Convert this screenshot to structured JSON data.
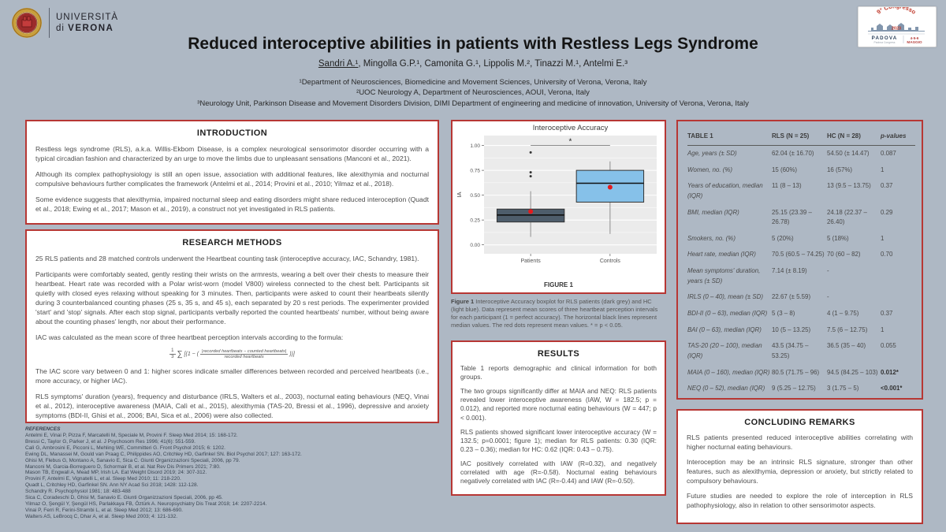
{
  "poster": {
    "title": "Reduced interoceptive abilities in patients with Restless Legs Syndrome",
    "authors_first": "Sandri A.¹",
    "authors_rest": ", Mingolla G.P.¹, Camonita G.¹, Lippolis M.², Tinazzi M.¹, Antelmi E.³",
    "affiliations": [
      "¹Department of Neurosciences, Biomedicine and Movement Sciences, University of Verona, Verona, Italy",
      "²UOC Neurology A, Department of Neurosciences, AOUI, Verona, Italy",
      "³Neurology Unit, Parkinson Disease and Movement Disorders Division, DIMI Department of engineering and medicine of innovation, University of Verona, Verona, Italy"
    ]
  },
  "logos": {
    "university_line1": "UNIVERSITÀ",
    "university_line2_prefix": "di ",
    "university_line2_bold": "VERONA",
    "congress_title": "9° Congresso",
    "congress_year": "2023",
    "congress_city": "PADOVA",
    "congress_sub": "Padova Congress",
    "congress_dates": "4-5-6",
    "congress_month": "MAGGIO"
  },
  "introduction": {
    "heading": "INTRODUCTION",
    "paragraphs": [
      "Restless legs syndrome (RLS), a.k.a. Willis-Ekbom Disease, is a complex neurological sensorimotor disorder occurring with a typical circadian fashion and characterized by an urge to move the limbs due to unpleasant sensations (Manconi et al., 2021).",
      "Although its complex pathophysiology is still an open issue, association with additional features, like alexithymia and nocturnal compulsive behaviours further complicates the framework (Antelmi et al., 2014; Provini et al., 2010; Yilmaz et al., 2018).",
      "Some evidence suggests that alexithymia, impaired nocturnal sleep and eating disorders might share reduced interoception (Quadt et al., 2018; Ewing et al., 2017; Mason et al., 2019), a construct not yet investigated in RLS patients."
    ]
  },
  "methods": {
    "heading": "RESEARCH METHODS",
    "paragraphs_before": [
      "25 RLS patients and 28 matched controls underwent the Heartbeat counting task (interoceptive accuracy, IAC, Schandry, 1981).",
      "Participants were comfortably seated, gently resting their wrists on the armrests, wearing a belt over their chests to measure their heartbeat. Heart rate was recorded with a Polar wrist-worn (model V800) wireless connected to the chest belt. Participants sit quietly with closed eyes relaxing without speaking for 3 minutes. Then, participants were asked to count their heartbeats silently during 3 counterbalanced counting phases (25 s, 35 s, and 45 s), each separated by 20 s rest periods. The experimenter provided 'start' and 'stop' signals. After each stop signal, participants verbally reported the counted heartbeats' number, without being aware about the counting phases' length, nor about their performance.",
      "IAC was calculated as the mean score of three heartbeat perception intervals according to the formula:"
    ],
    "formula": {
      "coef_num": "1",
      "coef_den": "3",
      "sum": "∑",
      "open": "[(1 − (",
      "num": "|recorded heartbeats − counted heartbeats|",
      "den": "recorded heartbeats",
      "close": "))]"
    },
    "paragraphs_after": [
      "The IAC score vary between 0 and 1: higher scores indicate smaller differences between recorded and perceived heartbeats (i.e., more accuracy, or higher IAC).",
      "RLS symptoms' duration (years), frequency and disturbance (IRLS, Walters et al., 2003), nocturnal eating behaviours (NEQ, Vinai et al., 2012), interoceptive awareness (MAIA, Calì et al., 2015), alexithymia (TAS-20, Bressi et al., 1996), depressive and anxiety symptoms (BDI-II, Ghisi et al., 2006; BAI, Sica et al., 2006) were also collected."
    ]
  },
  "references": {
    "heading": "REFERENCES",
    "items": [
      "Antelmi E, Vinai P, Pizza F, Marcatelli M, Speciale M, Provini F. Sleep Med 2014; 15: 168-172.",
      "Bressi C, Taylor G, Parker J, et al. J Psychosom Res 1996; 41(6): 551-559.",
      "Calì G, Ambrosini E, Picconi L, Mehling WE, Committeri G. Front Psychol 2015; 6: 1202.",
      "Ewing DL, Manassei M, Gould van Praag C, Philippides AO, Critchley HD, Garfinkel SN. Biol Psychol 2017; 127: 163-172.",
      "Ghisi M, Flebus G, Montano A, Sanavio E, Sica C. Giunti Organizzazioni Speciali, 2006, pp 79.",
      "Manconi M, Garcia-Borreguero D, Schormair B, et al. Nat Rev Dis Primers 2021; 7:80.",
      "Mason TB, Engwall A, Mead MP, Irish LA. Eat Weight Disord 2019; 24: 307-312.",
      "Provini F, Antelmi E, Vignatelli L, et al. Sleep Med 2010; 11: 218-220.",
      "Quadt L, Critchley HD, Garfinkel SN. Ann NY Acad Sci 2018; 1428: 112-128.",
      "Schandry R. Psychophysiol 1981; 18: 483-488",
      "Sica C, Coradeschi D, Ghisi M, Sanavio E. Giunti Organizzazioni Speciali, 2006, pp 45.",
      "Yilmaz O, Şengül Y, Şengül HS, Parlakkaya FB, Öztürk A. Neuropsychiatry Dis Treat 2018; 14: 2207-2214.",
      "Vinai P, Ferri R, Ferini-Strambi L, et al. Sleep Med 2012; 13: 686-690.",
      "Walters AS, LeBrocq C, Dhar A, et al. Sleep Med 2003; 4: 121-132."
    ]
  },
  "figure": {
    "caption_label": "Figure 1",
    "caption_text": " Interoceptive Accuracy boxplot for RLS patients (dark grey) and HC (light blue). Data represent mean scores of three heartbeat perception intervals for each participant (1 = perfect accuracy). The horizontal black lines represent median values. The red dots represent mean values. * = p < 0.05."
  },
  "chart_data": {
    "type": "boxplot",
    "title": "Interoceptive Accuracy",
    "ylabel": "IA",
    "figure_label": "FIGURE 1",
    "categories": [
      "Patients",
      "Controls"
    ],
    "yticks": [
      0.0,
      0.25,
      0.5,
      0.75,
      1.0
    ],
    "ylim": [
      -0.09,
      1.1
    ],
    "series": [
      {
        "name": "Patients",
        "min": 0.08,
        "q1": 0.23,
        "median": 0.3,
        "q3": 0.36,
        "max": 0.54,
        "mean": 0.335,
        "outliers": [
          0.69,
          0.73,
          0.93
        ],
        "fill": "#4e5d6b"
      },
      {
        "name": "Controls",
        "min": 0.11,
        "q1": 0.43,
        "median": 0.62,
        "q3": 0.75,
        "max": 0.84,
        "mean": 0.58,
        "outliers": [],
        "fill": "#86c1e9"
      }
    ],
    "significance": {
      "y": 1.0,
      "label": "*"
    },
    "mean_color": "#e41a1c",
    "panel_bg": "#ebebeb",
    "grid": true,
    "legend": "none"
  },
  "results": {
    "heading": "RESULTS",
    "paragraphs": [
      "Table 1 reports demographic and clinical information for both groups.",
      "The two groups significantly differ at MAIA and NEQ: RLS patients revealed lower interoceptive awareness (IAW, W = 182.5; p = 0.012), and reported more nocturnal eating behaviours (W = 447; p < 0.001).",
      "RLS patients showed significant lower interoceptive accuracy (W = 132.5; p=0.0001; figure 1); median for RLS patients: 0.30 (IQR: 0.23 – 0.36); median for HC: 0.62 (IQR: 0.43 – 0.75).",
      "IAC positively correlated with IAW (R=0.32), and negatively correlated with age (R=-0.58). Nocturnal eating behaviours negatively correlated with IAC (R=-0.44) and IAW (R=-0.50)."
    ]
  },
  "table": {
    "col_label": "TABLE 1",
    "col_rls": "RLS (N = 25)",
    "col_hc": "HC (N = 28)",
    "col_p": "p-values",
    "rows": [
      {
        "label": "Age, years (± SD)",
        "rls": "62.04 (± 16.70)",
        "hc": "54.50 (± 14.47)",
        "p": "0.087",
        "p_bold": false
      },
      {
        "label": "Women, no. (%)",
        "rls": "15 (60%)",
        "hc": "16 (57%)",
        "p": "1",
        "p_bold": false
      },
      {
        "label": "Years of education, median (IQR)",
        "rls": "11 (8 – 13)",
        "hc": "13 (9.5 – 13.75)",
        "p": "0.37",
        "p_bold": false
      },
      {
        "label": "BMI, median (IQR)",
        "rls": "25.15 (23.39 – 26.78)",
        "hc": "24.18 (22.37 – 26.40)",
        "p": "0.29",
        "p_bold": false
      },
      {
        "label": "Smokers, no. (%)",
        "rls": "5 (20%)",
        "hc": "5 (18%)",
        "p": "1",
        "p_bold": false
      },
      {
        "label": "Heart rate, median (IQR)",
        "rls": "70.5 (60.5 – 74.25)",
        "hc": "70 (60 – 82)",
        "p": "0.70",
        "p_bold": false
      },
      {
        "label": "Mean symptoms' duration, years (± SD)",
        "rls": "7.14 (± 8.19)",
        "hc": "-",
        "p": "",
        "p_bold": false
      },
      {
        "label": "IRLS (0 – 40), mean (± SD)",
        "rls": "22.67 (± 5.59)",
        "hc": "-",
        "p": "",
        "p_bold": false
      },
      {
        "label": "BDI-II (0 – 63), median (IQR)",
        "rls": "5 (3 – 8)",
        "hc": "4 (1 – 9.75)",
        "p": "0.37",
        "p_bold": false
      },
      {
        "label": "BAI (0 – 63), median (IQR)",
        "rls": "10 (5 – 13.25)",
        "hc": "7.5 (6 – 12.75)",
        "p": "1",
        "p_bold": false
      },
      {
        "label": "TAS-20 (20 – 100), median (IQR)",
        "rls": "43.5 (34.75 – 53.25)",
        "hc": "36.5 (35 – 40)",
        "p": "0.055",
        "p_bold": false
      },
      {
        "label": "MAIA (0 – 160), median (IQR)",
        "rls": "80.5 (71.75 – 96)",
        "hc": "94.5 (84.25 – 103)",
        "p": "0.012*",
        "p_bold": true
      },
      {
        "label": "NEQ (0 – 52), median (IQR)",
        "rls": "9 (5.25 – 12.75)",
        "hc": "3 (1.75 – 5)",
        "p": "<0.001*",
        "p_bold": true
      }
    ]
  },
  "conclusions": {
    "heading": "CONCLUDING REMARKS",
    "paragraphs": [
      "RLS patients presented reduced interoceptive abilities correlating with higher nocturnal eating behaviours.",
      "Interoception may be an intrinsic RLS signature, stronger than other features, such as alexithymia, depression or anxiety, but strictly related to compulsory behaviours.",
      "Future studies are needed to explore the role of interception in RLS pathophysiology, also in relation to other sensorimotor aspects."
    ]
  }
}
